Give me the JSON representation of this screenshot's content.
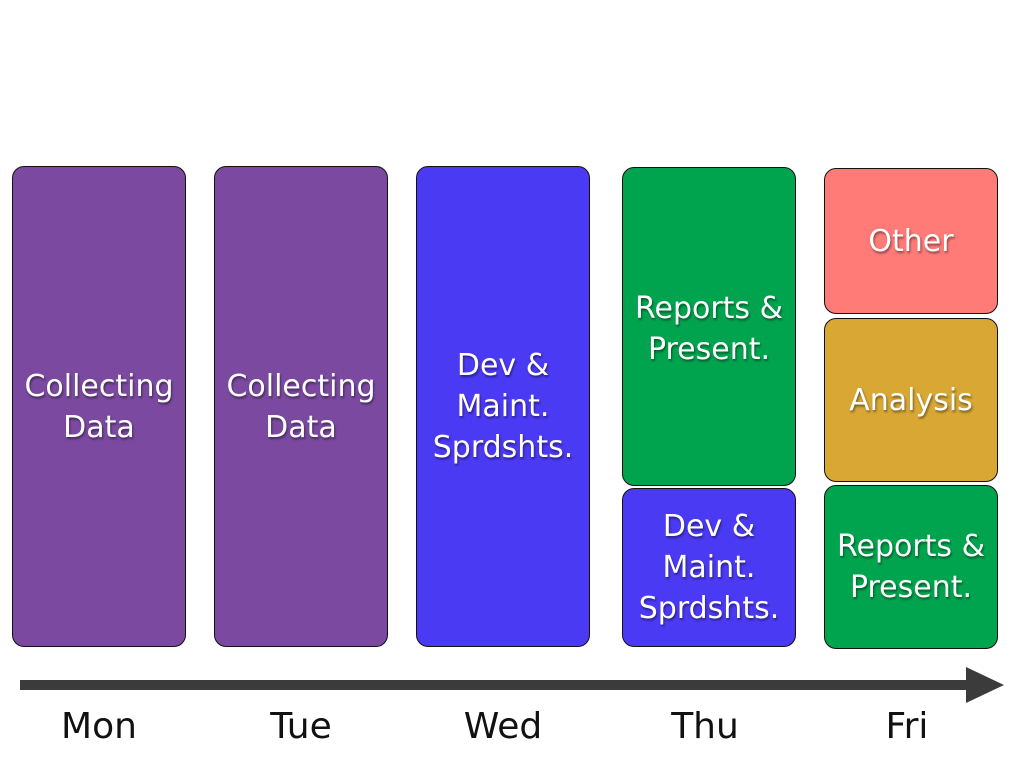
{
  "days": [
    {
      "label": "Mon",
      "blocks": [
        {
          "lines": [
            "Collecting",
            "Data"
          ]
        }
      ]
    },
    {
      "label": "Tue",
      "blocks": [
        {
          "lines": [
            "Collecting",
            "Data"
          ]
        }
      ]
    },
    {
      "label": "Wed",
      "blocks": [
        {
          "lines": [
            "Dev &",
            "Maint.",
            "Sprdshts."
          ]
        }
      ]
    },
    {
      "label": "Thu",
      "blocks": [
        {
          "lines": [
            "Reports &",
            "Present."
          ]
        },
        {
          "lines": [
            "Dev &",
            "Maint.",
            "Sprdshts."
          ]
        }
      ]
    },
    {
      "label": "Fri",
      "blocks": [
        {
          "lines": [
            "Other"
          ]
        },
        {
          "lines": [
            "Analysis"
          ]
        },
        {
          "lines": [
            "Reports &",
            "Present."
          ]
        }
      ]
    }
  ]
}
